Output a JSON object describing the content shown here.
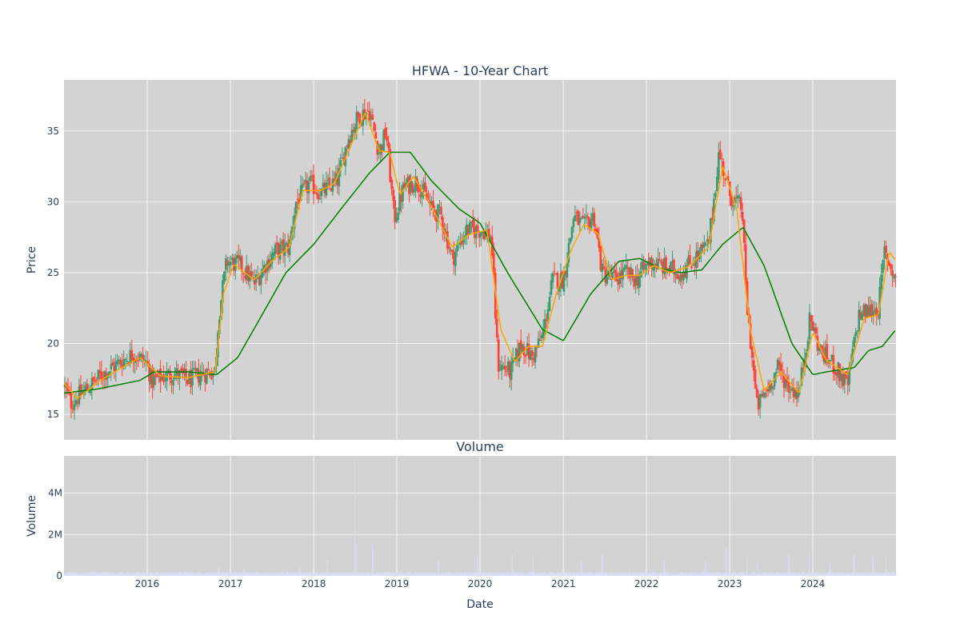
{
  "chart_data": [
    {
      "type": "candlestick",
      "title": "HFWA - 10-Year Chart",
      "ylabel": "Price",
      "xrange": [
        "2015-01-01",
        "2024-12-31"
      ],
      "ylim": [
        13.2,
        38.6
      ],
      "yticks": [
        15,
        20,
        25,
        30,
        35
      ],
      "xticks": [
        "2016",
        "2017",
        "2018",
        "2019",
        "2020",
        "2021",
        "2022",
        "2023",
        "2024"
      ],
      "background": "#d3d3d3",
      "grid": true,
      "colors": {
        "up": "#3d9970",
        "down": "#ff4136",
        "ma_short": "#ffa500",
        "ma_long": "#008000"
      },
      "price_path": [
        [
          "2015-01-02",
          17.0
        ],
        [
          "2015-02-01",
          15.8
        ],
        [
          "2015-03-15",
          16.4
        ],
        [
          "2015-05-01",
          17.1
        ],
        [
          "2015-06-15",
          17.8
        ],
        [
          "2015-08-01",
          18.3
        ],
        [
          "2015-09-15",
          18.8
        ],
        [
          "2015-11-01",
          19.3
        ],
        [
          "2016-01-01",
          18.6
        ],
        [
          "2016-01-20",
          17.3
        ],
        [
          "2016-03-01",
          17.6
        ],
        [
          "2016-05-01",
          17.9
        ],
        [
          "2016-07-01",
          17.4
        ],
        [
          "2016-09-01",
          17.9
        ],
        [
          "2016-10-25",
          18.1
        ],
        [
          "2016-11-10",
          22.0
        ],
        [
          "2016-12-15",
          25.8
        ],
        [
          "2017-02-15",
          25.5
        ],
        [
          "2017-04-15",
          24.2
        ],
        [
          "2017-06-01",
          25.5
        ],
        [
          "2017-07-15",
          26.5
        ],
        [
          "2017-09-15",
          26.8
        ],
        [
          "2017-10-15",
          30.0
        ],
        [
          "2017-12-15",
          31.3
        ],
        [
          "2018-02-01",
          30.6
        ],
        [
          "2018-04-15",
          31.5
        ],
        [
          "2018-06-01",
          34.5
        ],
        [
          "2018-07-15",
          36.0
        ],
        [
          "2018-09-01",
          36.5
        ],
        [
          "2018-10-15",
          33.5
        ],
        [
          "2018-11-15",
          35.0
        ],
        [
          "2018-12-20",
          28.8
        ],
        [
          "2019-02-01",
          31.0
        ],
        [
          "2019-04-01",
          31.5
        ],
        [
          "2019-06-01",
          29.5
        ],
        [
          "2019-07-15",
          29.0
        ],
        [
          "2019-09-01",
          26.0
        ],
        [
          "2019-11-01",
          28.0
        ],
        [
          "2020-01-15",
          28.0
        ],
        [
          "2020-02-20",
          27.5
        ],
        [
          "2020-03-20",
          18.5
        ],
        [
          "2020-05-15",
          18.0
        ],
        [
          "2020-07-01",
          20.0
        ],
        [
          "2020-08-15",
          19.0
        ],
        [
          "2020-10-01",
          20.5
        ],
        [
          "2020-11-15",
          24.5
        ],
        [
          "2021-01-01",
          24.5
        ],
        [
          "2021-02-15",
          29.0
        ],
        [
          "2021-04-01",
          28.2
        ],
        [
          "2021-05-15",
          29.0
        ],
        [
          "2021-06-20",
          25.0
        ],
        [
          "2021-08-15",
          24.5
        ],
        [
          "2021-10-01",
          25.0
        ],
        [
          "2021-11-15",
          24.5
        ],
        [
          "2022-01-15",
          25.8
        ],
        [
          "2022-04-01",
          25.3
        ],
        [
          "2022-06-01",
          25.0
        ],
        [
          "2022-08-01",
          26.0
        ],
        [
          "2022-10-01",
          27.0
        ],
        [
          "2022-11-15",
          33.5
        ],
        [
          "2023-01-01",
          30.5
        ],
        [
          "2023-02-25",
          29.5
        ],
        [
          "2023-03-15",
          23.0
        ],
        [
          "2023-04-10",
          19.0
        ],
        [
          "2023-05-01",
          15.5
        ],
        [
          "2023-06-15",
          16.8
        ],
        [
          "2023-08-01",
          18.3
        ],
        [
          "2023-09-15",
          17.0
        ],
        [
          "2023-11-01",
          16.5
        ],
        [
          "2023-12-20",
          21.8
        ],
        [
          "2024-02-01",
          19.5
        ],
        [
          "2024-04-01",
          18.5
        ],
        [
          "2024-06-01",
          17.0
        ],
        [
          "2024-07-20",
          22.0
        ],
        [
          "2024-09-01",
          22.3
        ],
        [
          "2024-10-15",
          22.5
        ],
        [
          "2024-11-10",
          26.5
        ],
        [
          "2024-12-31",
          24.5
        ]
      ],
      "ma_short_path": [
        [
          "2015-01-02",
          17.2
        ],
        [
          "2015-03-01",
          16.1
        ],
        [
          "2015-06-01",
          17.3
        ],
        [
          "2015-09-01",
          18.2
        ],
        [
          "2015-12-01",
          19.0
        ],
        [
          "2016-03-01",
          17.7
        ],
        [
          "2016-07-01",
          17.6
        ],
        [
          "2016-10-25",
          18.0
        ],
        [
          "2016-12-01",
          23.5
        ],
        [
          "2017-01-15",
          25.6
        ],
        [
          "2017-04-15",
          24.5
        ],
        [
          "2017-07-01",
          25.8
        ],
        [
          "2017-09-15",
          26.8
        ],
        [
          "2017-11-15",
          30.8
        ],
        [
          "2018-02-01",
          30.8
        ],
        [
          "2018-04-01",
          31.3
        ],
        [
          "2018-06-01",
          33.5
        ],
        [
          "2018-08-15",
          36.3
        ],
        [
          "2018-10-15",
          33.6
        ],
        [
          "2018-12-01",
          33.5
        ],
        [
          "2019-01-15",
          30.5
        ],
        [
          "2019-03-15",
          31.8
        ],
        [
          "2019-06-01",
          29.7
        ],
        [
          "2019-09-01",
          26.8
        ],
        [
          "2019-11-15",
          27.7
        ],
        [
          "2020-02-01",
          28.0
        ],
        [
          "2020-04-01",
          21.0
        ],
        [
          "2020-06-01",
          18.7
        ],
        [
          "2020-08-01",
          19.8
        ],
        [
          "2020-10-01",
          19.8
        ],
        [
          "2020-12-01",
          23.5
        ],
        [
          "2021-02-01",
          26.5
        ],
        [
          "2021-04-01",
          28.4
        ],
        [
          "2021-06-01",
          27.8
        ],
        [
          "2021-08-01",
          24.5
        ],
        [
          "2021-10-01",
          24.8
        ],
        [
          "2021-12-01",
          24.8
        ],
        [
          "2022-02-01",
          25.5
        ],
        [
          "2022-04-15",
          25.0
        ],
        [
          "2022-07-01",
          25.4
        ],
        [
          "2022-10-01",
          26.8
        ],
        [
          "2022-12-01",
          32.5
        ],
        [
          "2023-02-01",
          29.5
        ],
        [
          "2023-04-01",
          21.0
        ],
        [
          "2023-06-01",
          16.7
        ],
        [
          "2023-08-15",
          18.0
        ],
        [
          "2023-11-01",
          16.5
        ],
        [
          "2024-01-01",
          20.8
        ],
        [
          "2024-03-01",
          18.8
        ],
        [
          "2024-06-01",
          17.8
        ],
        [
          "2024-08-15",
          21.8
        ],
        [
          "2024-10-15",
          22.0
        ],
        [
          "2024-12-01",
          26.5
        ],
        [
          "2024-12-31",
          25.8
        ]
      ],
      "ma_long_path": [
        [
          "2015-01-02",
          16.5
        ],
        [
          "2015-06-01",
          16.8
        ],
        [
          "2015-12-01",
          17.4
        ],
        [
          "2016-02-01",
          18.0
        ],
        [
          "2016-07-01",
          18.0
        ],
        [
          "2016-11-01",
          17.8
        ],
        [
          "2017-02-01",
          19.0
        ],
        [
          "2017-05-01",
          21.5
        ],
        [
          "2017-09-01",
          25.0
        ],
        [
          "2018-01-01",
          27.0
        ],
        [
          "2018-05-01",
          29.5
        ],
        [
          "2018-09-01",
          32.0
        ],
        [
          "2018-12-01",
          33.5
        ],
        [
          "2019-03-01",
          33.5
        ],
        [
          "2019-06-01",
          31.5
        ],
        [
          "2019-10-01",
          29.5
        ],
        [
          "2020-01-01",
          28.5
        ],
        [
          "2020-05-01",
          25.0
        ],
        [
          "2020-10-01",
          21.0
        ],
        [
          "2021-01-01",
          20.2
        ],
        [
          "2021-05-01",
          23.5
        ],
        [
          "2021-09-01",
          25.8
        ],
        [
          "2021-12-01",
          26.0
        ],
        [
          "2022-03-01",
          25.3
        ],
        [
          "2022-06-01",
          25.0
        ],
        [
          "2022-09-01",
          25.2
        ],
        [
          "2022-12-01",
          27.0
        ],
        [
          "2023-03-01",
          28.2
        ],
        [
          "2023-06-01",
          25.5
        ],
        [
          "2023-10-01",
          20.0
        ],
        [
          "2024-01-01",
          17.8
        ],
        [
          "2024-03-01",
          18.0
        ],
        [
          "2024-07-01",
          18.3
        ],
        [
          "2024-09-01",
          19.5
        ],
        [
          "2024-11-01",
          19.8
        ],
        [
          "2024-12-31",
          21.0
        ]
      ]
    },
    {
      "type": "bar",
      "title": "Volume",
      "ylabel": "Volume",
      "xlabel": "Date",
      "ylim": [
        0,
        5800000
      ],
      "yticks": [
        {
          "v": 0,
          "label": "0"
        },
        {
          "v": 2000000,
          "label": "2M"
        },
        {
          "v": 4000000,
          "label": "4M"
        }
      ],
      "bar_color": "#dcdcf8",
      "baseline": 150000,
      "spikes": [
        [
          "2015-05-01",
          250000
        ],
        [
          "2016-11-10",
          450000
        ],
        [
          "2017-03-01",
          350000
        ],
        [
          "2017-11-01",
          400000
        ],
        [
          "2018-03-01",
          800000
        ],
        [
          "2018-06-29",
          5500000
        ],
        [
          "2018-07-05",
          1600000
        ],
        [
          "2018-09-14",
          1500000
        ],
        [
          "2019-07-01",
          700000
        ],
        [
          "2019-12-20",
          950000
        ],
        [
          "2020-05-20",
          1000000
        ],
        [
          "2020-08-20",
          900000
        ],
        [
          "2021-03-19",
          700000
        ],
        [
          "2021-06-18",
          1000000
        ],
        [
          "2022-03-18",
          800000
        ],
        [
          "2022-09-16",
          700000
        ],
        [
          "2022-12-16",
          1400000
        ],
        [
          "2023-03-17",
          900000
        ],
        [
          "2023-05-01",
          600000
        ],
        [
          "2023-09-15",
          1000000
        ],
        [
          "2023-12-15",
          1200000
        ],
        [
          "2024-03-15",
          600000
        ],
        [
          "2024-06-28",
          1000000
        ],
        [
          "2024-09-20",
          900000
        ],
        [
          "2024-11-15",
          850000
        ]
      ]
    }
  ],
  "labels": {
    "title": "HFWA - 10-Year Chart",
    "price_axis": "Price",
    "volume_title": "Volume",
    "volume_axis": "Volume",
    "date_axis": "Date"
  }
}
